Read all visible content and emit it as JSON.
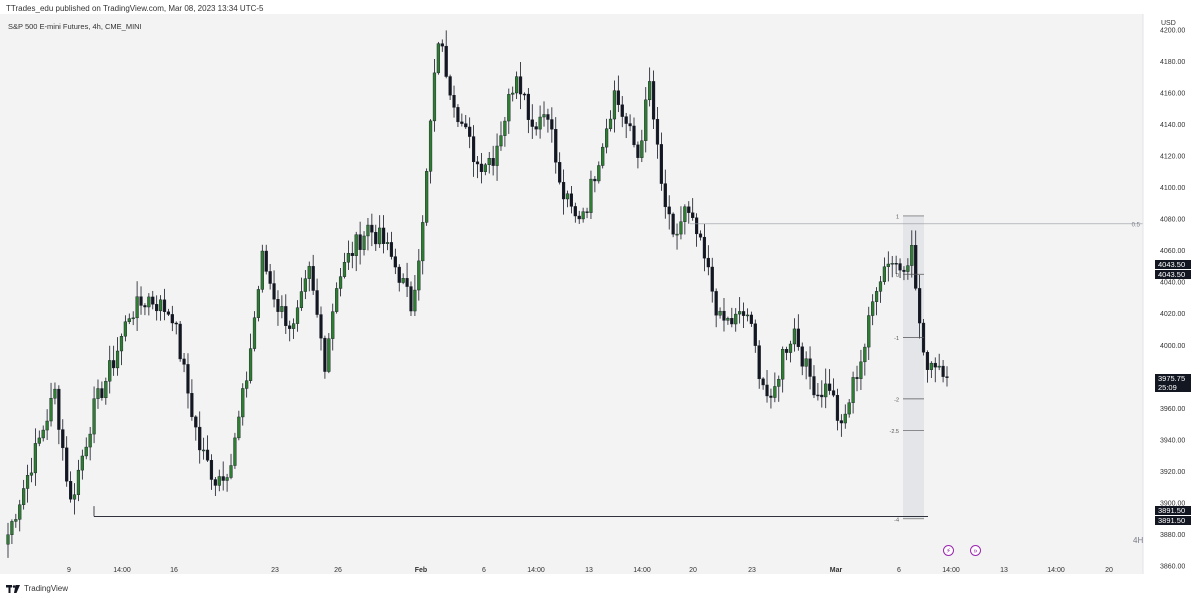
{
  "header": {
    "published_text": "TTrades_edu published on TradingView.com, Mar 08, 2023 13:34 UTC-5"
  },
  "footer": {
    "brand": "TradingView"
  },
  "chart_data": {
    "type": "candlestick",
    "title": "S&P 500 E-mini Futures, 4h, CME_MINI",
    "currency": "USD",
    "timeframe": "4H",
    "ylim": [
      3855,
      4210
    ],
    "y_ticks": [
      3860.0,
      3880.0,
      3900.0,
      3920.0,
      3940.0,
      3960.0,
      3980.0,
      4000.0,
      4020.0,
      4040.0,
      4060.0,
      4080.0,
      4100.0,
      4120.0,
      4140.0,
      4160.0,
      4180.0,
      4200.0
    ],
    "x_ticks": [
      "9",
      "14:00",
      "16",
      "23",
      "26",
      "Feb",
      "6",
      "14:00",
      "13",
      "14:00",
      "20",
      "23",
      "Mar",
      "6",
      "14:00",
      "13",
      "14:00",
      "20"
    ],
    "price_labels": [
      {
        "value": "4043.50"
      },
      {
        "value": "4043.50"
      },
      {
        "value": "3975.75",
        "sub": "25:09"
      },
      {
        "value": "3891.50"
      },
      {
        "value": "3891.50"
      }
    ],
    "horizontal_lines": [
      {
        "label": "0.5",
        "price": 4077
      },
      {
        "label": "",
        "price": 3891.5
      }
    ],
    "fib_levels": [
      {
        "label": "1",
        "price": 4082
      },
      {
        "label": "0",
        "price": 4045
      },
      {
        "label": "-1",
        "price": 4005
      },
      {
        "label": "-2",
        "price": 3966
      },
      {
        "label": "-2.5",
        "price": 3946
      },
      {
        "label": "-4",
        "price": 3890
      }
    ],
    "anchors": [
      [
        0,
        3880
      ],
      [
        8,
        3940
      ],
      [
        12,
        3970
      ],
      [
        16,
        3900
      ],
      [
        22,
        3960
      ],
      [
        27,
        3990
      ],
      [
        31,
        4020
      ],
      [
        36,
        4030
      ],
      [
        42,
        4020
      ],
      [
        46,
        3970
      ],
      [
        49,
        3935
      ],
      [
        53,
        3915
      ],
      [
        57,
        3925
      ],
      [
        61,
        3980
      ],
      [
        65,
        4055
      ],
      [
        69,
        4025
      ],
      [
        73,
        4010
      ],
      [
        77,
        4045
      ],
      [
        81,
        3990
      ],
      [
        84,
        4040
      ],
      [
        88,
        4060
      ],
      [
        92,
        4075
      ],
      [
        96,
        4065
      ],
      [
        100,
        4045
      ],
      [
        103,
        4025
      ],
      [
        106,
        4075
      ],
      [
        108,
        4140
      ],
      [
        110,
        4195
      ],
      [
        113,
        4165
      ],
      [
        116,
        4140
      ],
      [
        120,
        4115
      ],
      [
        124,
        4120
      ],
      [
        127,
        4145
      ],
      [
        130,
        4175
      ],
      [
        134,
        4140
      ],
      [
        138,
        4150
      ],
      [
        141,
        4100
      ],
      [
        145,
        4080
      ],
      [
        148,
        4090
      ],
      [
        152,
        4130
      ],
      [
        155,
        4160
      ],
      [
        158,
        4140
      ],
      [
        161,
        4120
      ],
      [
        164,
        4165
      ],
      [
        167,
        4100
      ],
      [
        170,
        4065
      ],
      [
        173,
        4085
      ],
      [
        176,
        4070
      ],
      [
        179,
        4045
      ],
      [
        182,
        4015
      ],
      [
        185,
        4015
      ],
      [
        189,
        4020
      ],
      [
        192,
        3985
      ],
      [
        195,
        3960
      ],
      [
        198,
        3995
      ],
      [
        201,
        4010
      ],
      [
        204,
        3985
      ],
      [
        207,
        3970
      ],
      [
        210,
        3975
      ],
      [
        213,
        3945
      ],
      [
        216,
        3975
      ],
      [
        219,
        4000
      ],
      [
        222,
        4040
      ],
      [
        225,
        4055
      ],
      [
        228,
        4050
      ],
      [
        231,
        4060
      ],
      [
        234,
        3990
      ],
      [
        237,
        3990
      ],
      [
        240,
        3985
      ]
    ]
  }
}
